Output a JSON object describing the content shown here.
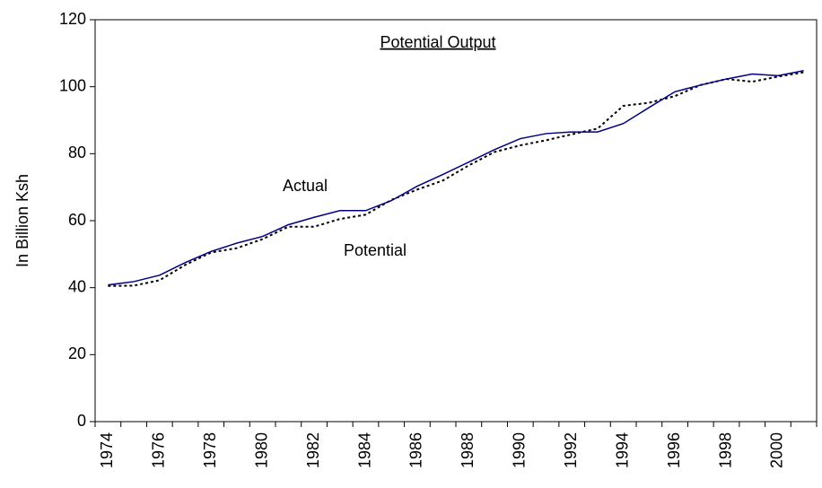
{
  "chart_data": {
    "type": "line",
    "title": "Potential Output",
    "y_label": "In Billion Ksh",
    "annotations": [
      "Actual",
      "Potential"
    ],
    "categories": [
      "1974",
      null,
      "1976",
      null,
      "1978",
      null,
      "1980",
      null,
      "1982",
      null,
      "1984",
      null,
      "1986",
      null,
      "1988",
      null,
      "1990",
      null,
      "1992",
      null,
      "1994",
      null,
      "1996",
      null,
      "1998",
      null,
      "2000",
      null
    ],
    "series": [
      {
        "name": "Actual",
        "color": "#000080",
        "dash": "solid",
        "values": [
          40.8,
          41.8,
          43.7,
          47.5,
          50.8,
          53.3,
          55.3,
          58.8,
          61,
          63,
          63,
          66,
          70.3,
          73.8,
          77.5,
          81.2,
          84.5,
          86,
          86.5,
          86.5,
          89,
          93.8,
          98.5,
          100.5,
          102.3,
          103.8,
          103.3,
          104.8
        ]
      },
      {
        "name": "Potential",
        "color": "#000000",
        "dash": "dotted",
        "values": [
          40.5,
          40.6,
          42.2,
          46.8,
          50.5,
          51.8,
          54.5,
          58.2,
          58.2,
          60.5,
          61.8,
          66.2,
          69.3,
          72,
          76.5,
          80.5,
          82.5,
          84,
          85.8,
          87.5,
          94.3,
          95.2,
          97.2,
          100.5,
          102.3,
          101.5,
          103,
          104.3
        ]
      }
    ],
    "ylim": [
      0,
      120
    ],
    "yticks": [
      0,
      20,
      40,
      60,
      80,
      100,
      120
    ],
    "grid": false
  }
}
